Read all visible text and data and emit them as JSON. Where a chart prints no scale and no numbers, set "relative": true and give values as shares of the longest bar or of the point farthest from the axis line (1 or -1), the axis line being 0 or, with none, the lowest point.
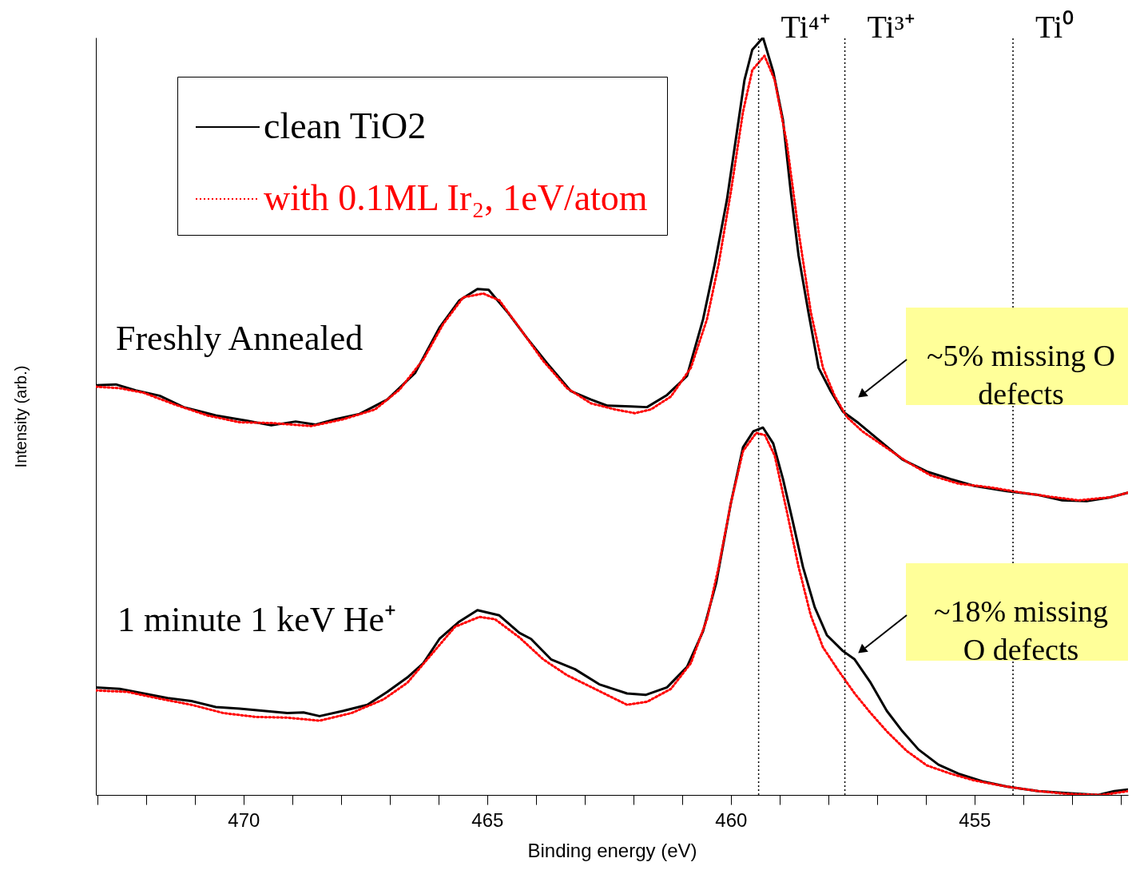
{
  "chart_data": {
    "type": "line",
    "relative": true,
    "xlabel": "Binding energy (eV)",
    "ylabel": "Intensity (arb.)",
    "xlim": [
      473.03,
      451.85
    ],
    "xticks": [
      {
        "value": 473,
        "label": null
      },
      {
        "value": 472,
        "label": null
      },
      {
        "value": 471,
        "label": null
      },
      470,
      {
        "value": 469,
        "label": null
      },
      {
        "value": 468,
        "label": null
      },
      {
        "value": 467,
        "label": null
      },
      {
        "value": 466,
        "label": null
      },
      465,
      {
        "value": 464,
        "label": null
      },
      {
        "value": 463,
        "label": null
      },
      {
        "value": 462,
        "label": null
      },
      {
        "value": 461,
        "label": null
      },
      460,
      {
        "value": 459,
        "label": null
      },
      {
        "value": 458,
        "label": null
      },
      {
        "value": 457,
        "label": null
      },
      {
        "value": 456,
        "label": null
      },
      455,
      {
        "value": 454,
        "label": null
      },
      {
        "value": 453,
        "label": null
      },
      {
        "value": 452,
        "label": null
      }
    ],
    "legend": "top left",
    "grid": false,
    "marker": "none",
    "series": [
      {
        "name": "clean TiO2",
        "color": "#000000",
        "line_style": "solid",
        "x": [
          473.03,
          472.62,
          472.21,
          471.72,
          471.23,
          470.57,
          469.92,
          469.43,
          468.93,
          468.52,
          468.11,
          467.62,
          467.05,
          466.48,
          465.98,
          465.57,
          465.2,
          464.97,
          464.59,
          464.18,
          463.77,
          463.28,
          462.87,
          462.54,
          462.05,
          461.72,
          461.31,
          460.9,
          460.57,
          460.33,
          460.08,
          459.84,
          459.72,
          459.56,
          459.34,
          459.13,
          458.93,
          458.77,
          458.61,
          458.41,
          458.2,
          457.95,
          457.7,
          457.38,
          456.97,
          456.48,
          455.98,
          455.49,
          455.0,
          454.34,
          453.69,
          453.2,
          452.7,
          452.21,
          451.85
        ],
        "values": [
          0.541,
          0.542,
          0.534,
          0.527,
          0.512,
          0.501,
          0.494,
          0.488,
          0.493,
          0.489,
          0.496,
          0.503,
          0.522,
          0.557,
          0.617,
          0.653,
          0.668,
          0.667,
          0.638,
          0.603,
          0.57,
          0.533,
          0.522,
          0.514,
          0.513,
          0.512,
          0.528,
          0.553,
          0.628,
          0.701,
          0.786,
          0.891,
          0.944,
          0.984,
          1.0,
          0.955,
          0.891,
          0.796,
          0.712,
          0.638,
          0.564,
          0.533,
          0.506,
          0.491,
          0.469,
          0.443,
          0.427,
          0.417,
          0.408,
          0.401,
          0.396,
          0.389,
          0.388,
          0.393,
          0.399
        ]
      },
      {
        "name": "with 0.1ML Ir₂, 1eV/atom",
        "color": "#ff0000",
        "line_style": "dotted",
        "x": [
          473.03,
          472.54,
          472.05,
          471.39,
          470.74,
          470.08,
          469.43,
          468.61,
          467.95,
          467.3,
          466.8,
          466.31,
          465.9,
          465.49,
          465.08,
          464.75,
          464.34,
          463.85,
          463.36,
          462.87,
          462.38,
          461.97,
          461.64,
          461.23,
          460.82,
          460.49,
          460.25,
          460.0,
          459.75,
          459.56,
          459.31,
          459.1,
          458.85,
          458.61,
          458.36,
          458.11,
          457.87,
          457.62,
          457.3,
          456.89,
          456.39,
          455.9,
          455.33,
          454.67,
          454.02,
          453.36,
          452.87,
          452.21,
          451.85
        ],
        "values": [
          0.539,
          0.537,
          0.531,
          0.515,
          0.501,
          0.492,
          0.491,
          0.487,
          0.496,
          0.509,
          0.535,
          0.575,
          0.622,
          0.657,
          0.662,
          0.653,
          0.617,
          0.573,
          0.537,
          0.517,
          0.509,
          0.504,
          0.509,
          0.526,
          0.564,
          0.628,
          0.701,
          0.796,
          0.902,
          0.957,
          0.976,
          0.944,
          0.86,
          0.744,
          0.638,
          0.564,
          0.527,
          0.499,
          0.48,
          0.462,
          0.44,
          0.422,
          0.411,
          0.406,
          0.399,
          0.393,
          0.389,
          0.393,
          0.399
        ]
      },
      {
        "color": "#000000",
        "line_style": "solid",
        "x": [
          473.03,
          472.54,
          472.05,
          471.56,
          471.07,
          470.57,
          470.08,
          469.59,
          469.1,
          468.77,
          468.44,
          467.95,
          467.46,
          467.05,
          466.64,
          466.31,
          465.98,
          465.57,
          465.2,
          464.75,
          464.34,
          464.1,
          463.69,
          463.2,
          462.7,
          462.13,
          461.75,
          461.31,
          460.9,
          460.57,
          460.3,
          460.0,
          459.75,
          459.54,
          459.34,
          459.13,
          458.93,
          458.74,
          458.52,
          458.28,
          458.03,
          457.7,
          457.46,
          457.13,
          456.8,
          456.48,
          456.15,
          455.74,
          455.33,
          454.84,
          454.34,
          453.69,
          453.03,
          452.46,
          452.13,
          451.85
        ],
        "values": [
          0.142,
          0.14,
          0.134,
          0.128,
          0.124,
          0.116,
          0.114,
          0.111,
          0.108,
          0.109,
          0.104,
          0.111,
          0.119,
          0.136,
          0.155,
          0.174,
          0.206,
          0.229,
          0.244,
          0.237,
          0.214,
          0.206,
          0.179,
          0.166,
          0.146,
          0.134,
          0.132,
          0.142,
          0.169,
          0.216,
          0.28,
          0.385,
          0.459,
          0.48,
          0.485,
          0.464,
          0.417,
          0.364,
          0.301,
          0.248,
          0.211,
          0.19,
          0.179,
          0.148,
          0.111,
          0.084,
          0.06,
          0.04,
          0.028,
          0.018,
          0.011,
          0.005,
          0.002,
          0,
          0.005,
          0.007
        ]
      },
      {
        "color": "#ff0000",
        "line_style": "dotted",
        "x": [
          473.03,
          472.38,
          471.72,
          471.07,
          470.41,
          469.75,
          469.1,
          468.44,
          467.79,
          467.13,
          466.64,
          466.15,
          465.66,
          465.16,
          464.84,
          464.34,
          463.85,
          463.36,
          462.79,
          462.13,
          461.72,
          461.23,
          460.82,
          460.49,
          460.25,
          460.0,
          459.75,
          459.48,
          459.3,
          459.1,
          458.85,
          458.61,
          458.36,
          458.11,
          457.79,
          457.46,
          457.13,
          456.8,
          456.39,
          455.98,
          455.49,
          455.0,
          454.34,
          453.69,
          453.03,
          452.38,
          451.85
        ],
        "values": [
          0.138,
          0.136,
          0.127,
          0.119,
          0.108,
          0.103,
          0.102,
          0.098,
          0.108,
          0.126,
          0.148,
          0.185,
          0.222,
          0.235,
          0.232,
          0.208,
          0.179,
          0.158,
          0.14,
          0.119,
          0.123,
          0.14,
          0.174,
          0.232,
          0.301,
          0.385,
          0.454,
          0.478,
          0.475,
          0.448,
          0.374,
          0.301,
          0.237,
          0.195,
          0.164,
          0.134,
          0.108,
          0.084,
          0.058,
          0.039,
          0.028,
          0.019,
          0.011,
          0.005,
          0.001,
          0,
          0.005
        ]
      }
    ],
    "ref_lines": [
      {
        "axis": "x",
        "value": 459.43,
        "label": "Ti⁴⁺",
        "color": "#000000",
        "line_style": "dotted"
      },
      {
        "axis": "x",
        "value": 457.66,
        "label": "Ti³⁺",
        "color": "#000000",
        "line_style": "dotted"
      },
      {
        "axis": "x",
        "value": 454.21,
        "label": "Ti⁰",
        "color": "#000000",
        "line_style": "dotted"
      }
    ],
    "annotations": [
      "Freshly Annealed",
      "1 minute 1 keV He⁺",
      "~5% missing O defects",
      "~18% missing O defects"
    ]
  }
}
